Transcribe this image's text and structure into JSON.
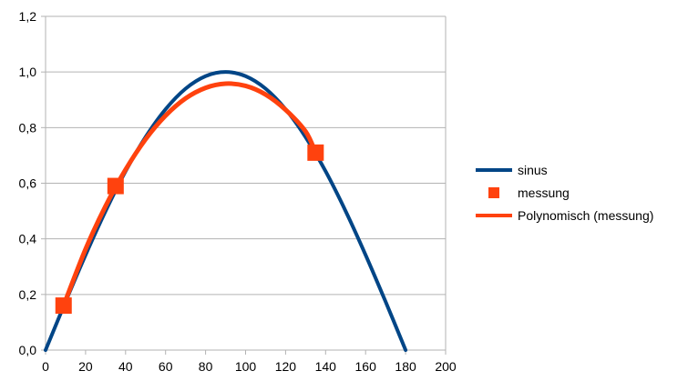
{
  "chart_data": {
    "type": "line",
    "title": "",
    "xlabel": "",
    "ylabel": "",
    "xlim": [
      0,
      200
    ],
    "ylim": [
      0,
      1.2
    ],
    "x_ticks": [
      0,
      20,
      40,
      60,
      80,
      100,
      120,
      140,
      160,
      180,
      200
    ],
    "y_ticks": [
      0.0,
      0.2,
      0.4,
      0.6,
      0.8,
      1.0,
      1.2
    ],
    "x_tick_labels": [
      "0",
      "20",
      "40",
      "60",
      "80",
      "100",
      "120",
      "140",
      "160",
      "180",
      "200"
    ],
    "y_tick_labels": [
      "0,0",
      "0,2",
      "0,4",
      "0,6",
      "0,8",
      "1,0",
      "1,2"
    ],
    "grid": {
      "horizontal": true,
      "vertical": false
    },
    "legend_position": "right",
    "series": [
      {
        "name": "sinus",
        "kind": "line",
        "color": "#004586",
        "x": [
          0,
          10,
          20,
          30,
          40,
          50,
          60,
          70,
          80,
          90,
          100,
          110,
          120,
          130,
          140,
          150,
          160,
          170,
          180
        ],
        "y": [
          0.0,
          0.174,
          0.342,
          0.5,
          0.643,
          0.766,
          0.866,
          0.94,
          0.985,
          1.0,
          0.985,
          0.94,
          0.866,
          0.766,
          0.643,
          0.5,
          0.342,
          0.174,
          0.0
        ]
      },
      {
        "name": "messung",
        "kind": "markers",
        "color": "#FF420E",
        "x": [
          9,
          35,
          135
        ],
        "y": [
          0.16,
          0.59,
          0.71
        ]
      },
      {
        "name": "Polynomisch (messung)",
        "kind": "line",
        "color": "#FF420E",
        "x": [
          9,
          20,
          30,
          40,
          50,
          60,
          70,
          80,
          90,
          100,
          110,
          120,
          130,
          135
        ],
        "y": [
          0.16,
          0.363,
          0.518,
          0.649,
          0.758,
          0.843,
          0.905,
          0.943,
          0.958,
          0.95,
          0.919,
          0.864,
          0.786,
          0.71
        ]
      }
    ]
  }
}
